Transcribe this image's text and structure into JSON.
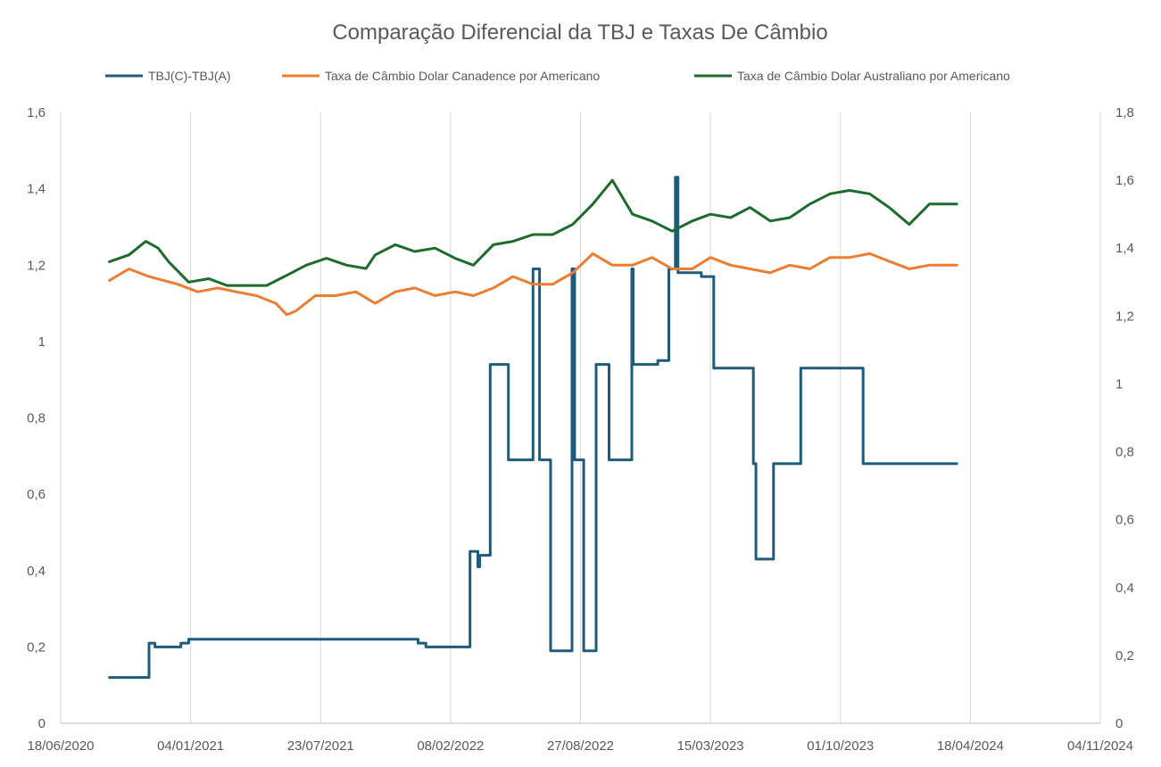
{
  "chart_data": {
    "type": "line",
    "title": "Comparação Diferencial da TBJ e Taxas De Câmbio",
    "legend_position": "top",
    "grid": "vertical",
    "x_axis": {
      "ticks": [
        "18/06/2020",
        "04/01/2021",
        "23/07/2021",
        "08/02/2022",
        "27/08/2022",
        "15/03/2023",
        "01/10/2023",
        "18/04/2024",
        "04/11/2024"
      ]
    },
    "y_left": {
      "min": 0,
      "max": 1.6,
      "ticks": [
        "0",
        "0,2",
        "0,4",
        "0,6",
        "0,8",
        "1",
        "1,2",
        "1,4",
        "1,6"
      ]
    },
    "y_right": {
      "min": 0,
      "max": 1.8,
      "ticks": [
        "0",
        "0,2",
        "0,4",
        "0,6",
        "0,8",
        "1",
        "1,2",
        "1,4",
        "1,6",
        "1,8"
      ]
    },
    "series": [
      {
        "name": "TBJ(C)-TBJ(A)",
        "color": "#1F5B7A",
        "axis": "left",
        "step": true,
        "x": [
          "2020-09-01",
          "2020-10-27",
          "2020-11-01",
          "2020-11-10",
          "2020-11-20",
          "2020-12-15",
          "2020-12-20",
          "2021-01-01",
          "2021-07-01",
          "2021-10-10",
          "2021-11-01",
          "2021-12-20",
          "2022-01-01",
          "2022-02-20",
          "2022-03-10",
          "2022-03-20",
          "2022-03-22",
          "2022-03-25",
          "2022-04-05",
          "2022-04-10",
          "2022-04-12",
          "2022-05-05",
          "2022-05-08",
          "2022-05-12",
          "2022-06-12",
          "2022-06-15",
          "2022-06-20",
          "2022-06-25",
          "2022-07-08",
          "2022-07-12",
          "2022-08-12",
          "2022-08-14",
          "2022-08-16",
          "2022-08-18",
          "2022-08-19",
          "2022-09-01",
          "2022-09-20",
          "2022-10-08",
          "2022-10-10",
          "2022-10-12",
          "2022-11-14",
          "2022-11-16",
          "2022-11-22",
          "2022-11-25",
          "2022-12-24",
          "2023-01-10",
          "2023-01-20",
          "2023-01-22",
          "2023-01-24",
          "2023-02-20",
          "2023-03-01",
          "2023-03-20",
          "2023-04-16",
          "2023-05-01",
          "2023-05-20",
          "2023-05-22",
          "2023-05-24",
          "2023-06-20",
          "2023-07-10",
          "2023-08-01",
          "2023-10-01",
          "2023-11-05",
          "2024-01-01",
          "2024-03-01",
          "2024-03-28"
        ],
        "values": [
          0.12,
          0.12,
          0.21,
          0.2,
          0.2,
          0.2,
          0.21,
          0.22,
          0.22,
          0.22,
          0.22,
          0.21,
          0.2,
          0.2,
          0.45,
          0.45,
          0.41,
          0.44,
          0.44,
          0.94,
          0.94,
          0.94,
          0.69,
          0.69,
          0.69,
          1.19,
          1.19,
          0.69,
          0.69,
          0.19,
          0.19,
          1.19,
          1.19,
          0.69,
          0.69,
          0.19,
          0.94,
          0.94,
          0.69,
          0.69,
          1.19,
          0.94,
          0.94,
          0.94,
          0.95,
          1.19,
          1.43,
          1.43,
          1.18,
          1.18,
          1.17,
          0.93,
          0.93,
          0.93,
          0.68,
          0.68,
          0.43,
          0.68,
          0.68,
          0.93,
          0.93,
          0.68,
          0.68,
          0.68,
          0.68
        ]
      },
      {
        "name": "Taxa de Câmbio Dolar Canadence por Americano",
        "color": "#ED7D31",
        "axis": "left",
        "x": [
          "2020-09-01",
          "2020-10-01",
          "2020-11-01",
          "2020-12-15",
          "2021-01-15",
          "2021-02-15",
          "2021-03-15",
          "2021-04-15",
          "2021-05-15",
          "2021-06-01",
          "2021-06-15",
          "2021-07-15",
          "2021-08-15",
          "2021-09-15",
          "2021-10-15",
          "2021-11-15",
          "2021-12-15",
          "2022-01-15",
          "2022-02-15",
          "2022-03-15",
          "2022-04-15",
          "2022-05-15",
          "2022-06-15",
          "2022-07-15",
          "2022-08-15",
          "2022-09-15",
          "2022-10-15",
          "2022-11-15",
          "2022-12-15",
          "2023-01-15",
          "2023-02-15",
          "2023-03-15",
          "2023-04-15",
          "2023-05-15",
          "2023-06-15",
          "2023-07-15",
          "2023-08-15",
          "2023-09-15",
          "2023-10-15",
          "2023-11-15",
          "2023-12-15",
          "2024-01-15",
          "2024-02-15",
          "2024-03-28"
        ],
        "values": [
          1.16,
          1.19,
          1.17,
          1.15,
          1.13,
          1.14,
          1.13,
          1.12,
          1.1,
          1.07,
          1.08,
          1.12,
          1.12,
          1.13,
          1.1,
          1.13,
          1.14,
          1.12,
          1.13,
          1.12,
          1.14,
          1.17,
          1.15,
          1.15,
          1.18,
          1.23,
          1.2,
          1.2,
          1.22,
          1.19,
          1.19,
          1.22,
          1.2,
          1.19,
          1.18,
          1.2,
          1.19,
          1.22,
          1.22,
          1.23,
          1.21,
          1.19,
          1.2,
          1.2
        ]
      },
      {
        "name": "Taxa de Câmbio Dolar Australiano por Americano",
        "color": "#1E6B2E",
        "axis": "right",
        "x": [
          "2020-09-01",
          "2020-10-01",
          "2020-10-27",
          "2020-11-15",
          "2020-12-01",
          "2021-01-01",
          "2021-02-01",
          "2021-03-01",
          "2021-04-01",
          "2021-05-01",
          "2021-06-01",
          "2021-07-01",
          "2021-08-01",
          "2021-09-01",
          "2021-10-01",
          "2021-10-15",
          "2021-11-15",
          "2021-12-15",
          "2022-01-15",
          "2022-02-15",
          "2022-03-15",
          "2022-04-15",
          "2022-05-15",
          "2022-06-15",
          "2022-07-15",
          "2022-08-15",
          "2022-09-15",
          "2022-10-15",
          "2022-11-15",
          "2022-12-15",
          "2023-01-15",
          "2023-02-15",
          "2023-03-15",
          "2023-04-15",
          "2023-05-15",
          "2023-06-15",
          "2023-07-15",
          "2023-08-15",
          "2023-09-15",
          "2023-10-15",
          "2023-11-15",
          "2023-12-15",
          "2024-01-15",
          "2024-02-15",
          "2024-03-28"
        ],
        "values": [
          1.36,
          1.38,
          1.42,
          1.4,
          1.36,
          1.3,
          1.31,
          1.29,
          1.29,
          1.29,
          1.32,
          1.35,
          1.37,
          1.35,
          1.34,
          1.38,
          1.41,
          1.39,
          1.4,
          1.37,
          1.35,
          1.41,
          1.42,
          1.44,
          1.44,
          1.47,
          1.53,
          1.6,
          1.5,
          1.48,
          1.45,
          1.48,
          1.5,
          1.49,
          1.52,
          1.48,
          1.49,
          1.53,
          1.56,
          1.57,
          1.56,
          1.52,
          1.47,
          1.53,
          1.53
        ]
      }
    ]
  }
}
